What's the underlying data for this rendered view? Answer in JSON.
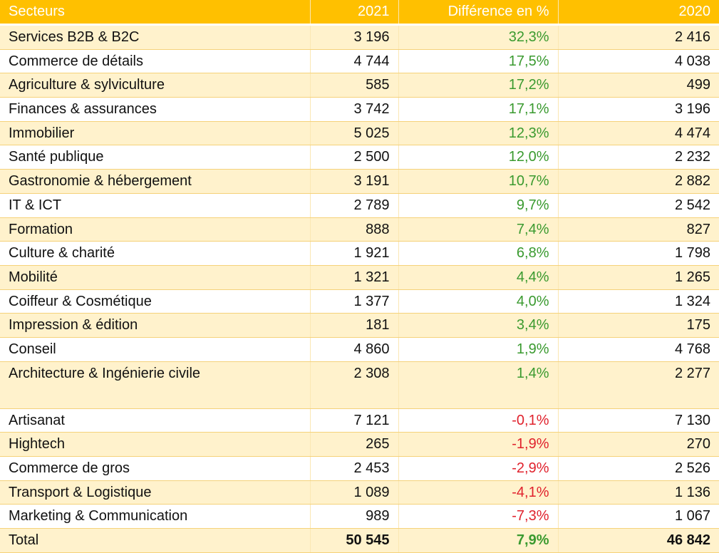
{
  "header": {
    "col_sector": "Secteurs",
    "col_2021": "2021",
    "col_diff": "Différence en %",
    "col_2020": "2020"
  },
  "rows": [
    {
      "sector": "Services B2B & B2C",
      "y2021": "3 196",
      "diff": "32,3%",
      "y2020": "2 416",
      "sign": "pos"
    },
    {
      "sector": "Commerce de détails",
      "y2021": "4 744",
      "diff": "17,5%",
      "y2020": "4 038",
      "sign": "pos"
    },
    {
      "sector": "Agriculture & sylviculture",
      "y2021": "585",
      "diff": "17,2%",
      "y2020": "499",
      "sign": "pos"
    },
    {
      "sector": "Finances & assurances",
      "y2021": "3 742",
      "diff": "17,1%",
      "y2020": "3 196",
      "sign": "pos"
    },
    {
      "sector": "Immobilier",
      "y2021": "5 025",
      "diff": "12,3%",
      "y2020": "4 474",
      "sign": "pos"
    },
    {
      "sector": "Santé publique",
      "y2021": "2 500",
      "diff": "12,0%",
      "y2020": "2 232",
      "sign": "pos"
    },
    {
      "sector": "Gastronomie & hébergement",
      "y2021": "3 191",
      "diff": "10,7%",
      "y2020": "2 882",
      "sign": "pos"
    },
    {
      "sector": "IT & ICT",
      "y2021": "2 789",
      "diff": "9,7%",
      "y2020": "2 542",
      "sign": "pos"
    },
    {
      "sector": "Formation",
      "y2021": "888",
      "diff": "7,4%",
      "y2020": "827",
      "sign": "pos"
    },
    {
      "sector": "Culture & charité",
      "y2021": "1 921",
      "diff": "6,8%",
      "y2020": "1 798",
      "sign": "pos"
    },
    {
      "sector": "Mobilité",
      "y2021": "1 321",
      "diff": "4,4%",
      "y2020": "1 265",
      "sign": "pos"
    },
    {
      "sector": "Coiffeur & Cosmétique",
      "y2021": "1 377",
      "diff": "4,0%",
      "y2020": "1 324",
      "sign": "pos"
    },
    {
      "sector": "Impression & édition",
      "y2021": "181",
      "diff": "3,4%",
      "y2020": "175",
      "sign": "pos"
    },
    {
      "sector": "Conseil",
      "y2021": "4 860",
      "diff": "1,9%",
      "y2020": "4 768",
      "sign": "pos"
    },
    {
      "sector": "Architecture & Ingénierie civile",
      "y2021": "2 308",
      "diff": "1,4%",
      "y2020": "2 277",
      "sign": "pos"
    },
    {
      "sector": "Artisanat",
      "y2021": "7 121",
      "diff": "-0,1%",
      "y2020": "7 130",
      "sign": "neg"
    },
    {
      "sector": "Hightech",
      "y2021": "265",
      "diff": "-1,9%",
      "y2020": "270",
      "sign": "neg"
    },
    {
      "sector": "Commerce de gros",
      "y2021": "2 453",
      "diff": "-2,9%",
      "y2020": "2 526",
      "sign": "neg"
    },
    {
      "sector": "Transport & Logistique",
      "y2021": "1 089",
      "diff": "-4,1%",
      "y2020": "1 136",
      "sign": "neg"
    },
    {
      "sector": "Marketing & Communication",
      "y2021": "989",
      "diff": "-7,3%",
      "y2020": "1 067",
      "sign": "neg"
    }
  ],
  "total": {
    "label": "Total",
    "y2021": "50 545",
    "diff": "7,9%",
    "y2020": "46 842"
  },
  "colors": {
    "header_bg": "#ffc000",
    "stripe_bg": "#fff2cc",
    "positive": "#3a9a2f",
    "negative": "#e0222d"
  }
}
